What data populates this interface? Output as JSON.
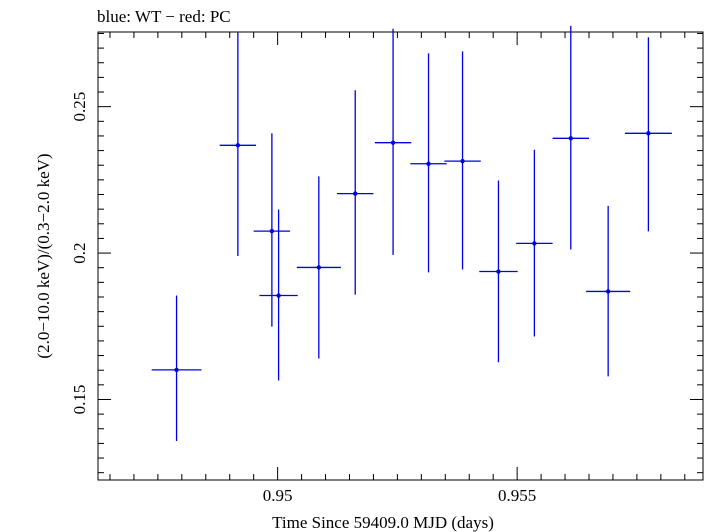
{
  "chart_data": {
    "type": "scatter",
    "title": "blue: WT − red: PC",
    "xlabel": "Time Since 59409.0 MJD (days)",
    "ylabel": "(2.0−10.0 keV)/(0.3−2.0 keV)",
    "xlim": [
      0.94625,
      0.95888
    ],
    "ylim": [
      0.1225,
      0.2755
    ],
    "x_tick_labels": [
      {
        "value": 0.95,
        "label": "0.95"
      },
      {
        "value": 0.955,
        "label": "0.955"
      }
    ],
    "x_minor_ticks": [
      0.9465,
      0.947,
      0.9475,
      0.948,
      0.9485,
      0.949,
      0.9495,
      0.9505,
      0.951,
      0.9515,
      0.952,
      0.9525,
      0.953,
      0.9535,
      0.954,
      0.9545,
      0.9555,
      0.956,
      0.9565,
      0.957,
      0.9575,
      0.958,
      0.9585
    ],
    "y_tick_labels": [
      {
        "value": 0.15,
        "label": "0.15"
      },
      {
        "value": 0.2,
        "label": "0.2"
      },
      {
        "value": 0.25,
        "label": "0.25"
      }
    ],
    "y_minor_ticks": [
      0.125,
      0.13,
      0.135,
      0.14,
      0.145,
      0.155,
      0.16,
      0.165,
      0.17,
      0.175,
      0.18,
      0.185,
      0.19,
      0.195,
      0.205,
      0.21,
      0.215,
      0.22,
      0.225,
      0.23,
      0.235,
      0.24,
      0.245,
      0.255,
      0.26,
      0.265,
      0.27,
      0.275
    ],
    "grid": false,
    "series": [
      {
        "color": "#0000e6",
        "marker": "dot",
        "x": [
          0.94789,
          0.94917,
          0.94988,
          0.95002,
          0.95086,
          0.95162,
          0.95241,
          0.95315,
          0.95386,
          0.95461,
          0.95536,
          0.95612,
          0.9569,
          0.95774
        ],
        "x_err": [
          0.00052,
          0.00038,
          0.00038,
          0.0004,
          0.00046,
          0.00038,
          0.00038,
          0.00038,
          0.00038,
          0.0004,
          0.00038,
          0.00038,
          0.00046,
          0.00049
        ],
        "y": [
          0.1601,
          0.2368,
          0.2075,
          0.1855,
          0.1951,
          0.2203,
          0.2377,
          0.2305,
          0.2314,
          0.1937,
          0.2033,
          0.2392,
          0.1869,
          0.2409
        ],
        "y_err_low": [
          0.0243,
          0.0378,
          0.0326,
          0.029,
          0.0311,
          0.0345,
          0.0383,
          0.0371,
          0.037,
          0.031,
          0.0318,
          0.038,
          0.029,
          0.0335
        ],
        "y_err_high": [
          0.0254,
          0.0385,
          0.0334,
          0.0294,
          0.0311,
          0.0353,
          0.0389,
          0.0377,
          0.0375,
          0.0311,
          0.032,
          0.0384,
          0.0292,
          0.0328
        ]
      }
    ]
  }
}
